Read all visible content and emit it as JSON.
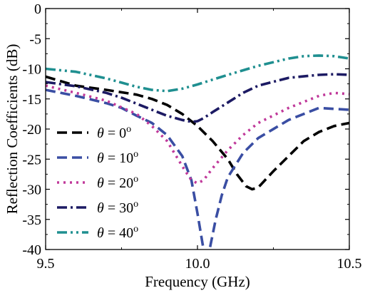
{
  "chart_data": {
    "type": "line",
    "title": "",
    "xlabel": "Frequency (GHz)",
    "ylabel": "Reflection Coefficients  (dB)",
    "xlim": [
      9.5,
      10.5
    ],
    "ylim": [
      -40,
      0
    ],
    "x_ticks": [
      9.5,
      10.0,
      10.5
    ],
    "x_tick_labels": [
      "9.5",
      "10.0",
      "10.5"
    ],
    "y_ticks": [
      -40,
      -35,
      -30,
      -25,
      -20,
      -15,
      -10,
      -5,
      0
    ],
    "y_tick_labels": [
      "-40",
      "-35",
      "-30",
      "-25",
      "-20",
      "-15",
      "-10",
      "-5",
      "0"
    ],
    "grid": false,
    "legend_position": "bottom-left",
    "series": [
      {
        "name": "θ = 0°",
        "theta": "0",
        "color": "#000000",
        "dash": "dash",
        "x": [
          9.5,
          9.6,
          9.7,
          9.8,
          9.85,
          9.9,
          9.95,
          10.0,
          10.05,
          10.1,
          10.13,
          10.16,
          10.18,
          10.2,
          10.25,
          10.3,
          10.35,
          10.4,
          10.45,
          10.5
        ],
        "y": [
          -11.3,
          -12.8,
          -13.5,
          -14.3,
          -15.0,
          -16.0,
          -17.5,
          -19.5,
          -22.0,
          -25.0,
          -27.5,
          -29.5,
          -30.0,
          -29.7,
          -27.0,
          -24.5,
          -22.0,
          -20.5,
          -19.5,
          -19.0
        ]
      },
      {
        "name": "θ = 10°",
        "theta": "10",
        "color": "#3a4ea3",
        "dash": "dash",
        "x": [
          9.5,
          9.6,
          9.7,
          9.75,
          9.8,
          9.85,
          9.9,
          9.95,
          9.98,
          10.0,
          10.02,
          10.03,
          10.04,
          10.06,
          10.08,
          10.1,
          10.15,
          10.2,
          10.3,
          10.4,
          10.5
        ],
        "y": [
          -13.5,
          -14.5,
          -15.7,
          -16.5,
          -17.8,
          -19.0,
          -21.0,
          -24.5,
          -28.5,
          -34.0,
          -40.0,
          -41.0,
          -40.0,
          -35.0,
          -31.0,
          -28.0,
          -24.0,
          -21.5,
          -18.5,
          -16.5,
          -16.8
        ]
      },
      {
        "name": "θ = 20°",
        "theta": "20",
        "color": "#c0399a",
        "dash": "dot",
        "x": [
          9.5,
          9.6,
          9.7,
          9.8,
          9.85,
          9.9,
          9.93,
          9.96,
          9.98,
          10.0,
          10.02,
          10.05,
          10.1,
          10.15,
          10.2,
          10.3,
          10.4,
          10.45,
          10.5
        ],
        "y": [
          -12.8,
          -14.0,
          -15.3,
          -17.5,
          -19.5,
          -22.0,
          -24.5,
          -27.0,
          -28.5,
          -29.0,
          -28.5,
          -26.5,
          -23.5,
          -21.0,
          -19.0,
          -16.5,
          -14.5,
          -14.0,
          -14.2
        ]
      },
      {
        "name": "θ = 30°",
        "theta": "30",
        "color": "#1c1a63",
        "dash": "dashdot",
        "x": [
          9.5,
          9.6,
          9.7,
          9.75,
          9.8,
          9.85,
          9.9,
          9.95,
          9.98,
          10.0,
          10.02,
          10.05,
          10.1,
          10.15,
          10.2,
          10.3,
          10.4,
          10.45,
          10.5
        ],
        "y": [
          -12.2,
          -12.9,
          -14.0,
          -14.8,
          -15.8,
          -16.8,
          -17.8,
          -18.5,
          -18.8,
          -18.7,
          -18.2,
          -17.2,
          -15.6,
          -14.0,
          -12.8,
          -11.5,
          -11.0,
          -10.9,
          -11.0
        ]
      },
      {
        "name": "θ = 40°",
        "theta": "40",
        "color": "#1f8f90",
        "dash": "dashdotdot",
        "x": [
          9.5,
          9.6,
          9.7,
          9.75,
          9.8,
          9.85,
          9.9,
          9.95,
          10.0,
          10.05,
          10.1,
          10.2,
          10.3,
          10.35,
          10.4,
          10.45,
          10.5
        ],
        "y": [
          -10.0,
          -10.5,
          -11.6,
          -12.3,
          -13.0,
          -13.5,
          -13.7,
          -13.3,
          -12.6,
          -11.8,
          -11.0,
          -9.5,
          -8.3,
          -7.9,
          -7.8,
          -7.9,
          -8.3
        ]
      }
    ]
  }
}
